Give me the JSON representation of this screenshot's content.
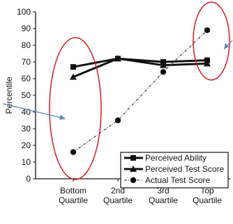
{
  "chart_data": {
    "type": "line",
    "ylabel": "Percentile",
    "xlabel": "",
    "ylim": [
      0,
      100
    ],
    "yticks": [
      0,
      10,
      20,
      30,
      40,
      50,
      60,
      70,
      80,
      90,
      100
    ],
    "categories": [
      [
        "Bottom",
        "Quartile"
      ],
      [
        "2nd",
        "Quartile"
      ],
      [
        "3rd",
        "Quartile"
      ],
      [
        "Top",
        "Quartile"
      ]
    ],
    "series": [
      {
        "name": "Perceived Ability",
        "values": [
          67,
          72,
          70,
          71
        ],
        "marker": "square",
        "dashed": false,
        "color": "#111111"
      },
      {
        "name": "Perceived Test Score",
        "values": [
          61,
          72,
          68,
          69
        ],
        "marker": "triangle",
        "dashed": false,
        "color": "#111111"
      },
      {
        "name": "Actual Test Score",
        "values": [
          16,
          35,
          64,
          89
        ],
        "marker": "circle",
        "dashed": true,
        "color": "#555555"
      }
    ],
    "legend_position": "bottom-right",
    "annotations": {
      "ellipse_color": "#cc1f1f",
      "arrow_color": "#5b86b8",
      "ellipses": [
        "around Bottom Quartile",
        "around Top Quartile"
      ]
    }
  }
}
